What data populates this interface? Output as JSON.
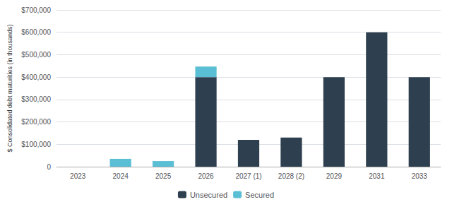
{
  "chart_data": {
    "type": "bar",
    "stacked": true,
    "categories": [
      "2023",
      "2024",
      "2025",
      "2026",
      "2027 (1)",
      "2028 (2)",
      "2029",
      "2031",
      "2033"
    ],
    "series": [
      {
        "name": "Unsecured",
        "color": "#2e3f4f",
        "values": [
          0,
          0,
          0,
          400000,
          120000,
          130000,
          400000,
          600000,
          400000
        ]
      },
      {
        "name": "Secured",
        "color": "#5abed4",
        "values": [
          0,
          35000,
          25000,
          47000,
          0,
          0,
          0,
          0,
          0
        ]
      }
    ],
    "ylabel": "$ Consolidated debt maturities (in thousands)",
    "ylim": [
      0,
      700000
    ],
    "yticks": [
      0,
      {
        "value": 100000,
        "label": "$100,000"
      },
      {
        "value": 200000,
        "label": "$200,000"
      },
      {
        "value": 300000,
        "label": "$300,000"
      },
      {
        "value": 400000,
        "label": "$400,000"
      },
      {
        "value": 500000,
        "label": "$500,000"
      },
      {
        "value": 600000,
        "label": "$600,000"
      },
      {
        "value": 700000,
        "label": "$700,000"
      }
    ],
    "grid": true,
    "legend": "bottom"
  }
}
